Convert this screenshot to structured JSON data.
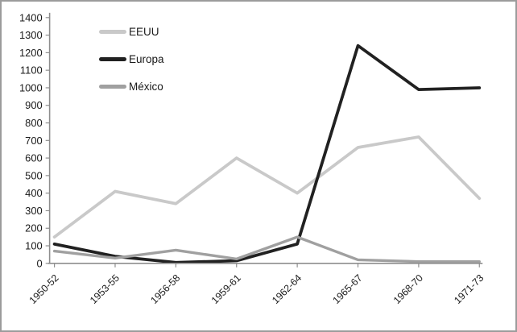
{
  "window": {
    "background": "#ffffff",
    "border_color": "#9c9c9c"
  },
  "chart_data": {
    "type": "line",
    "title": "",
    "xlabel": "",
    "ylabel": "",
    "categories": [
      "1950-52",
      "1953-55",
      "1956-58",
      "1959-61",
      "1962-64",
      "1965-67",
      "1968-70",
      "1971-73"
    ],
    "series": [
      {
        "name": "EEUU",
        "color": "#c9c9c9",
        "stroke_width": 3.8,
        "values": [
          150,
          410,
          340,
          600,
          400,
          660,
          720,
          370
        ]
      },
      {
        "name": "Europa",
        "color": "#212121",
        "stroke_width": 3.8,
        "values": [
          110,
          40,
          5,
          15,
          110,
          1240,
          990,
          1000
        ]
      },
      {
        "name": "México",
        "color": "#a0a0a0",
        "stroke_width": 3.4,
        "values": [
          70,
          30,
          75,
          25,
          150,
          20,
          10,
          10
        ]
      }
    ],
    "ylim": [
      0,
      1400
    ],
    "ytick_step": 100,
    "yticks": [
      0,
      100,
      200,
      300,
      400,
      500,
      600,
      700,
      800,
      900,
      1000,
      1100,
      1200,
      1300,
      1400
    ],
    "grid": false,
    "legend_position": "top-left",
    "axis_color": "#8e8e8e",
    "text_color": "#1a1a1a"
  }
}
